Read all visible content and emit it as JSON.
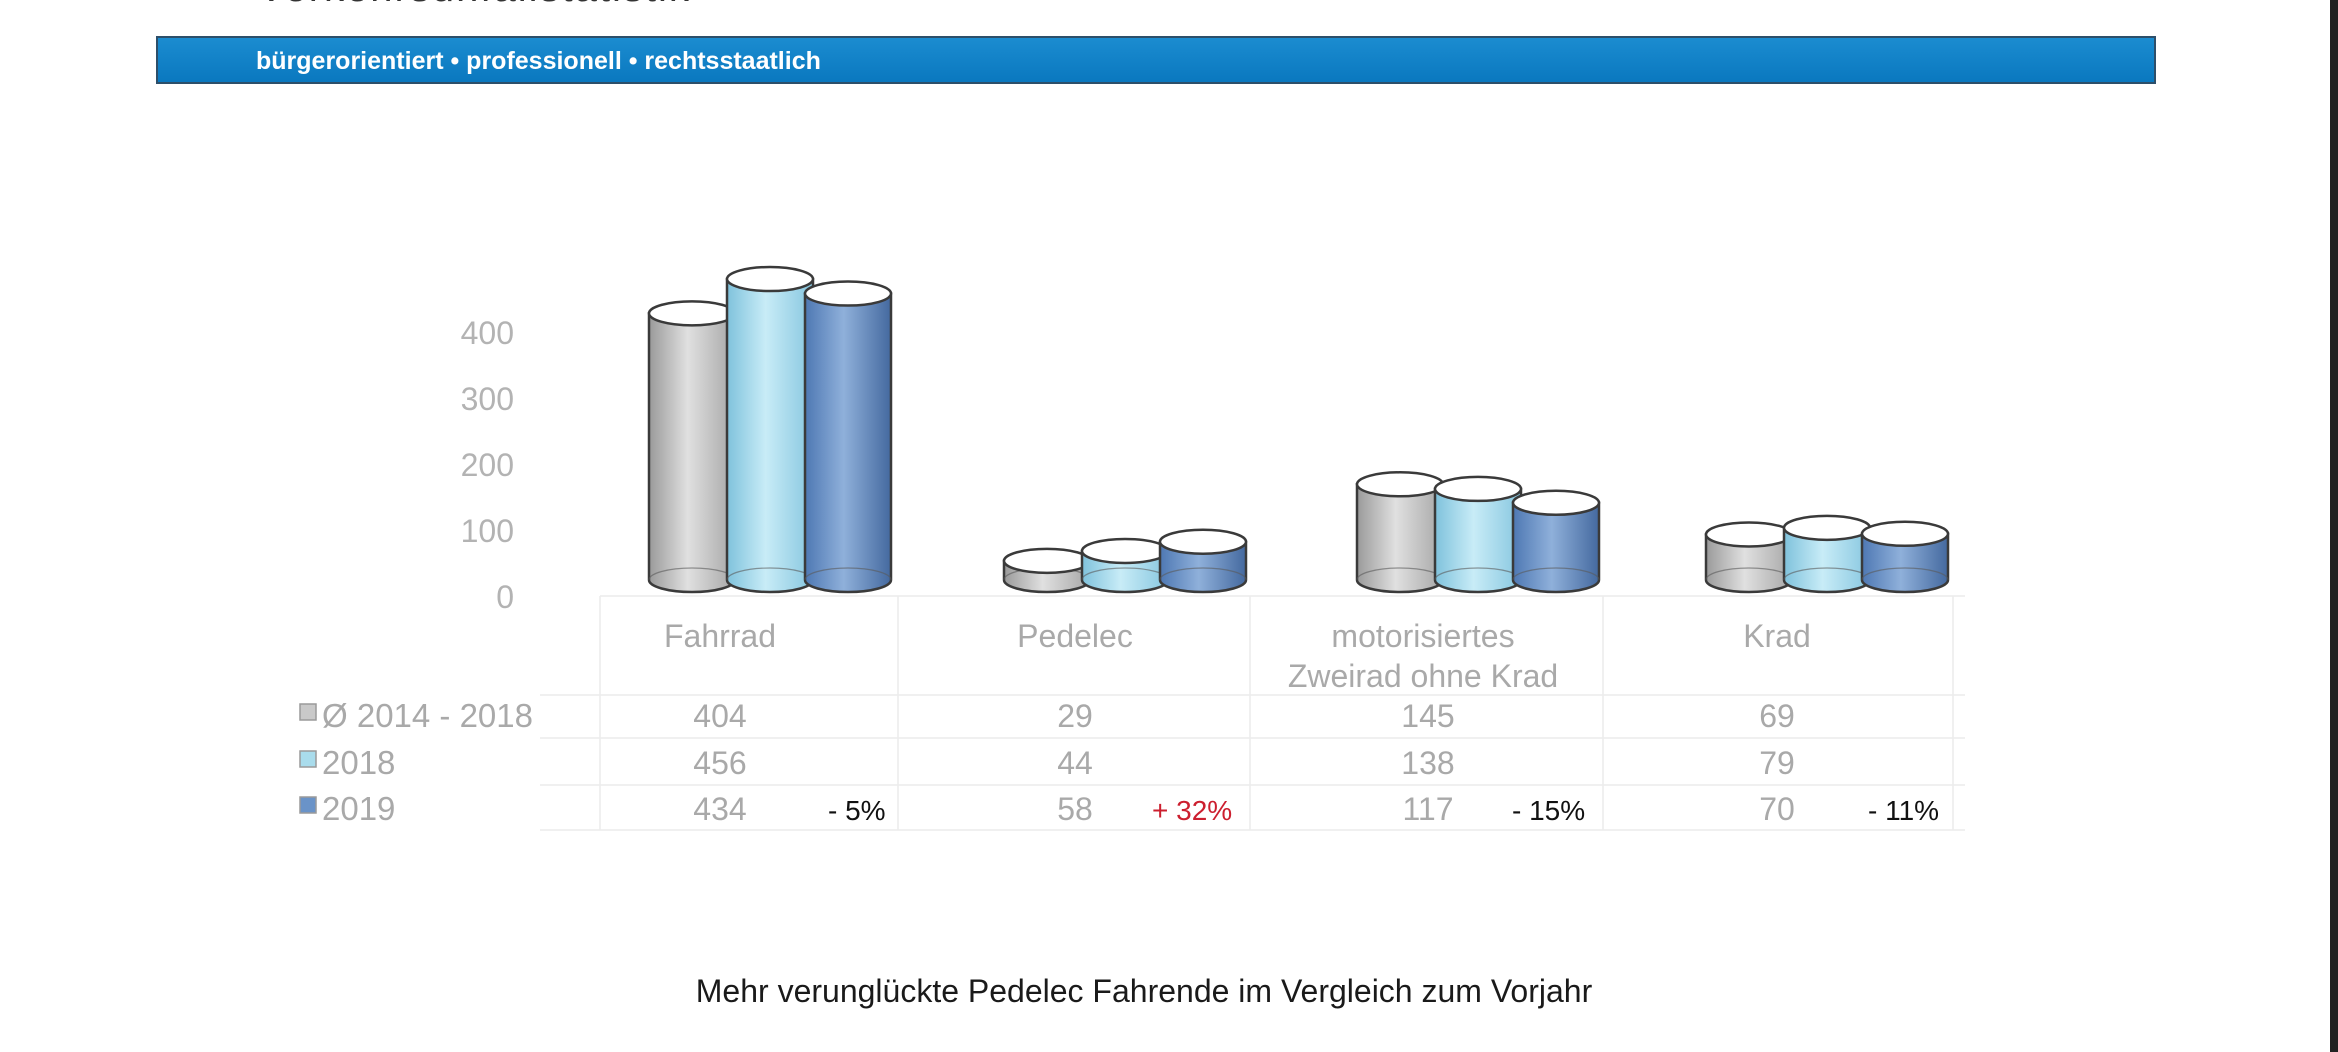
{
  "header": {
    "tagline": "bürgerorientiert • professionell • rechtsstaatlich",
    "banner_color": "#0a78bf"
  },
  "caption": "Mehr verunglückte Pedelec Fahrende im Vergleich zum Vorjahr",
  "chart_data": {
    "type": "bar",
    "style": "3d-cylinder",
    "categories": [
      [
        "Fahrrad"
      ],
      [
        "Pedelec"
      ],
      [
        "motorisiertes",
        "Zweirad ohne Krad"
      ],
      [
        "Krad"
      ]
    ],
    "y_ticks": [
      0,
      100,
      200,
      300,
      400
    ],
    "ylim": [
      0,
      480
    ],
    "grid": false,
    "legend_position": "left of data table",
    "series": [
      {
        "name": "Ø 2014 - 2018",
        "values": [
          404,
          29,
          145,
          69
        ],
        "color": "#c9c9c9"
      },
      {
        "name": "2018",
        "values": [
          456,
          44,
          138,
          79
        ],
        "color": "#a9dcec"
      },
      {
        "name": "2019",
        "values": [
          434,
          58,
          117,
          70
        ],
        "color": "#6a93c8"
      }
    ],
    "changes": [
      {
        "text": "- 5%",
        "direction": "down"
      },
      {
        "text": "+ 32%",
        "direction": "up"
      },
      {
        "text": "- 15%",
        "direction": "down"
      },
      {
        "text": "- 11%",
        "direction": "down"
      }
    ]
  }
}
